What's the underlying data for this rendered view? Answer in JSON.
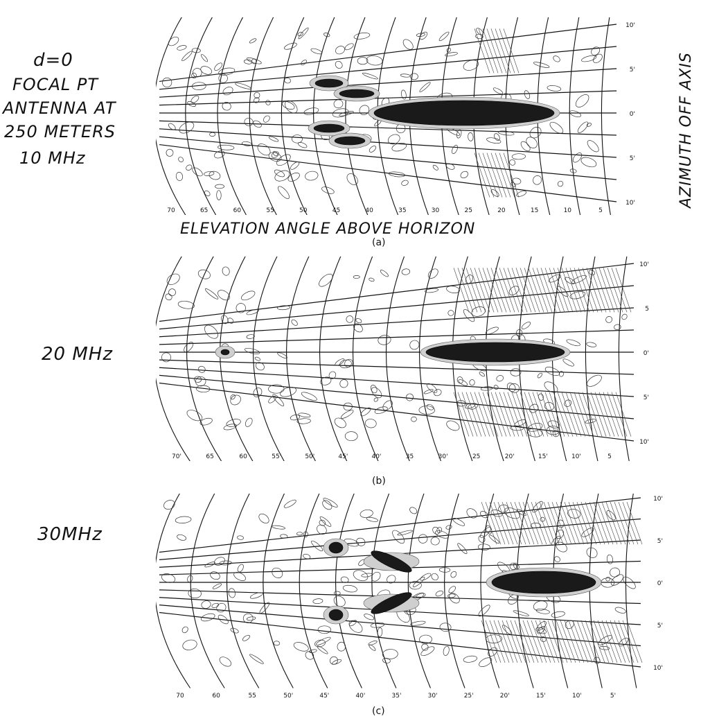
{
  "notes": {
    "line1": "d=0",
    "line2": "FOCAL PT",
    "line3": "ANTENNA AT",
    "line4": "250 METERS",
    "line5": "10 MHz"
  },
  "vertical_label": "AZIMUTH OFF AXIS",
  "panels": [
    {
      "caption": "(a)",
      "freq_label": "",
      "x_axis_label": "ELEVATION ANGLE ABOVE HORIZON",
      "elevation_ticks": [
        "70",
        "65",
        "60",
        "55",
        "50",
        "45",
        "40",
        "35",
        "30",
        "25",
        "20",
        "15",
        "10",
        "5"
      ],
      "azimuth_ticks": [
        "10'",
        "5'",
        "0'",
        "5'",
        "10'"
      ]
    },
    {
      "caption": "(b)",
      "freq_label": "20 MHz",
      "x_axis_label": "",
      "elevation_ticks": [
        "70'",
        "65",
        "60",
        "55'",
        "50'",
        "45'",
        "40'",
        "35",
        "30'",
        "25",
        "20'",
        "15'",
        "10'",
        "5"
      ],
      "azimuth_ticks": [
        "10'",
        "5",
        "0'",
        "5'",
        "10'"
      ]
    },
    {
      "caption": "(c)",
      "freq_label": "30MHz",
      "x_axis_label": "",
      "elevation_ticks": [
        "70",
        "60",
        "55",
        "50'",
        "45'",
        "40'",
        "35'",
        "30'",
        "25'",
        "20'",
        "15'",
        "10'",
        "5'"
      ],
      "azimuth_ticks": [
        "10'",
        "5'",
        "0'",
        "5'",
        "10'"
      ]
    }
  ]
}
